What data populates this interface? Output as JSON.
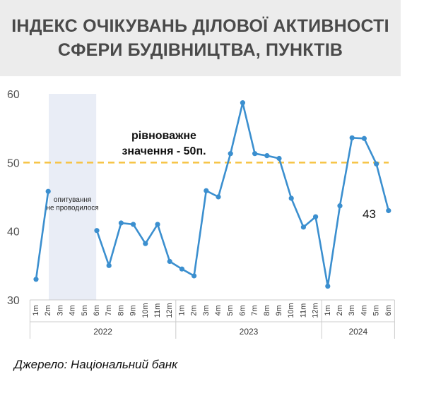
{
  "title": {
    "line1": "ІНДЕКС ОЧІКУВАНЬ ДІЛОВОЇ АКТИВНОСТІ",
    "line2": "СФЕРИ БУДІВНИЦТВА, ПУНКТІВ"
  },
  "source": "Джерело: Національний банк",
  "colors": {
    "line": "#3b8fcf",
    "reference": "#f6c344",
    "gap_shade": "#e9edf6",
    "axis_text": "#555555"
  },
  "chart_data": {
    "type": "line",
    "ylim": [
      30,
      60
    ],
    "yticks": [
      30,
      40,
      50,
      60
    ],
    "grid": false,
    "categories": [
      "1m",
      "2m",
      "3m",
      "4m",
      "5m",
      "6m",
      "7m",
      "8m",
      "9m",
      "10m",
      "11m",
      "12m",
      "1m",
      "2m",
      "3m",
      "4m",
      "5m",
      "6m",
      "7m",
      "8m",
      "9m",
      "10m",
      "11m",
      "12m",
      "1m",
      "2m",
      "3m",
      "4m",
      "5m",
      "6m"
    ],
    "year_groups": [
      {
        "label": "2022",
        "count": 12
      },
      {
        "label": "2023",
        "count": 12
      },
      {
        "label": "2024",
        "count": 6
      }
    ],
    "series": [
      {
        "values": [
          33.0,
          45.8,
          null,
          null,
          null,
          40.1,
          35.0,
          41.2,
          41.0,
          38.2,
          41.0,
          35.6,
          34.5,
          33.5,
          45.9,
          45.0,
          51.3,
          58.7,
          51.3,
          51.0,
          50.6,
          44.8,
          40.6,
          42.1,
          32.0,
          43.7,
          53.6,
          53.5,
          49.8,
          43.0
        ]
      }
    ],
    "reference_line": {
      "value": 50,
      "label_line1": "рівноважне",
      "label_line2": "значення - 50п."
    },
    "gap_annotation": {
      "from_index": 2,
      "to_index": 4,
      "line1": "опитування",
      "line2": "не проводилося"
    },
    "last_value_label": "43"
  }
}
